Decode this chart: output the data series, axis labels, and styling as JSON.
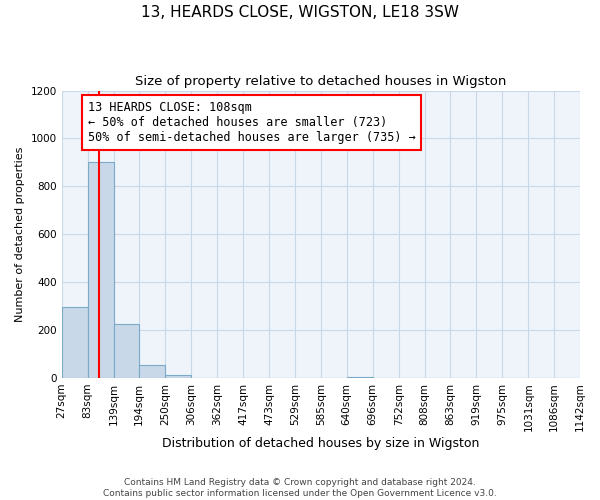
{
  "title": "13, HEARDS CLOSE, WIGSTON, LE18 3SW",
  "subtitle": "Size of property relative to detached houses in Wigston",
  "xlabel": "Distribution of detached houses by size in Wigston",
  "ylabel": "Number of detached properties",
  "bin_edges": [
    27,
    83,
    139,
    194,
    250,
    306,
    362,
    417,
    473,
    529,
    585,
    640,
    696,
    752,
    808,
    863,
    919,
    975,
    1031,
    1086,
    1142
  ],
  "bar_heights": [
    295,
    900,
    225,
    55,
    10,
    0,
    0,
    0,
    0,
    0,
    0,
    5,
    0,
    0,
    0,
    0,
    0,
    0,
    0,
    0
  ],
  "bar_color": "#c8d8e8",
  "bar_edgecolor": "#7aaac8",
  "property_line_x": 108,
  "property_line_color": "red",
  "annotation_text": "13 HEARDS CLOSE: 108sqm\n← 50% of detached houses are smaller (723)\n50% of semi-detached houses are larger (735) →",
  "annotation_box_edgecolor": "red",
  "annotation_box_facecolor": "white",
  "annotation_fontsize": 8.5,
  "ylim": [
    0,
    1200
  ],
  "yticks": [
    0,
    200,
    400,
    600,
    800,
    1000,
    1200
  ],
  "tick_labels": [
    "27sqm",
    "83sqm",
    "139sqm",
    "194sqm",
    "250sqm",
    "306sqm",
    "362sqm",
    "417sqm",
    "473sqm",
    "529sqm",
    "585sqm",
    "640sqm",
    "696sqm",
    "752sqm",
    "808sqm",
    "863sqm",
    "919sqm",
    "975sqm",
    "1031sqm",
    "1086sqm",
    "1142sqm"
  ],
  "footer1": "Contains HM Land Registry data © Crown copyright and database right 2024.",
  "footer2": "Contains public sector information licensed under the Open Government Licence v3.0.",
  "title_fontsize": 11,
  "subtitle_fontsize": 9.5,
  "xlabel_fontsize": 9,
  "ylabel_fontsize": 8,
  "tick_fontsize": 7.5,
  "grid_color": "#c8d8e8",
  "background_color": "#eef4fa"
}
